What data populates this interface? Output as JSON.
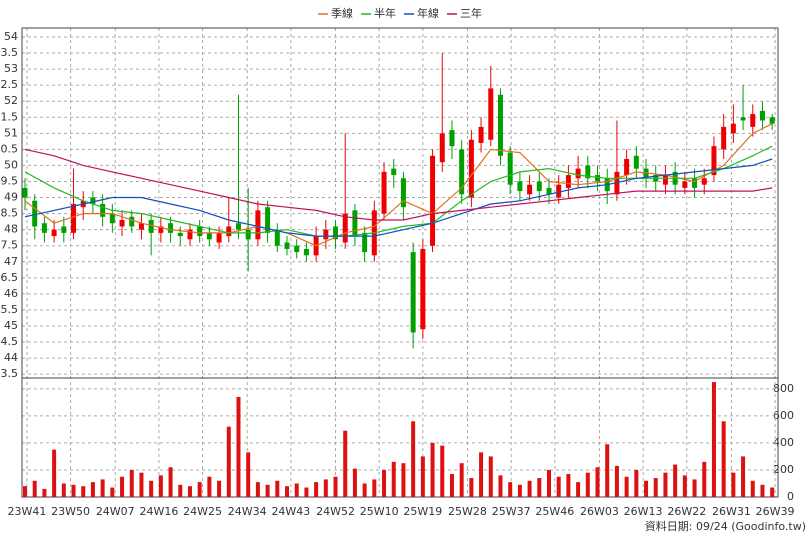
{
  "chart_data": {
    "type": "candlestick",
    "legend": "top",
    "grid": true,
    "up_color": "#ee0000",
    "down_color": "#00a000",
    "xlim": [
      -0.31,
      77.6
    ],
    "xticks": [
      {
        "value": 0.2,
        "label": "23W41"
      },
      {
        "value": 4.7,
        "label": "23W50"
      },
      {
        "value": 9.3,
        "label": "24W07"
      },
      {
        "value": 13.8,
        "label": "24W16"
      },
      {
        "value": 18.3,
        "label": "24W25"
      },
      {
        "value": 22.9,
        "label": "24W34"
      },
      {
        "value": 27.4,
        "label": "24W43"
      },
      {
        "value": 32.0,
        "label": "24W52"
      },
      {
        "value": 36.5,
        "label": "25W10"
      },
      {
        "value": 41.0,
        "label": "25W19"
      },
      {
        "value": 45.6,
        "label": "25W28"
      },
      {
        "value": 50.1,
        "label": "25W37"
      },
      {
        "value": 54.6,
        "label": "25W46"
      },
      {
        "value": 59.2,
        "label": "26W03"
      },
      {
        "value": 63.7,
        "label": "26W13"
      },
      {
        "value": 68.2,
        "label": "26W22"
      },
      {
        "value": 72.8,
        "label": "26W31"
      },
      {
        "value": 77.3,
        "label": "26W39"
      }
    ],
    "ylim": [
      43.38,
      54.28
    ],
    "yticks": [
      54,
      {
        "value": 53.5,
        "label": "3.5"
      },
      53,
      {
        "value": 52.5,
        "label": "2.5"
      },
      52,
      {
        "value": 51.5,
        "label": "1.5"
      },
      51,
      {
        "value": 50.5,
        "label": "0.5"
      },
      50,
      {
        "value": 49.5,
        "label": "9.5"
      },
      49,
      {
        "value": 48.5,
        "label": "8.5"
      },
      48,
      {
        "value": 47.5,
        "label": "7.5"
      },
      47,
      {
        "value": 46.5,
        "label": "6.5"
      },
      46,
      {
        "value": 45.5,
        "label": "5.5"
      },
      45,
      {
        "value": 44.5,
        "label": "4.5"
      },
      44,
      {
        "value": 43.5,
        "label": "3.5"
      }
    ],
    "open": [
      49.3,
      48.9,
      48.2,
      47.8,
      48.1,
      47.9,
      48.7,
      49.0,
      48.8,
      48.5,
      48.1,
      48.4,
      48.0,
      48.3,
      47.9,
      48.2,
      47.9,
      47.7,
      48.1,
      47.9,
      47.6,
      47.8,
      48.2,
      48.0,
      47.7,
      48.7,
      48.0,
      47.6,
      47.5,
      47.4,
      47.2,
      47.7,
      48.1,
      47.6,
      48.6,
      47.9,
      47.2,
      48.5,
      49.9,
      49.6,
      47.3,
      44.9,
      47.5,
      50.1,
      51.1,
      50.5,
      49.0,
      50.7,
      50.8,
      52.2,
      50.4,
      49.5,
      49.1,
      49.5,
      49.3,
      49.0,
      49.3,
      49.6,
      50.0,
      49.7,
      49.6,
      49.1,
      49.7,
      50.3,
      49.9,
      49.7,
      49.4,
      49.8,
      49.3,
      49.6,
      49.4,
      49.7,
      50.5,
      51.0,
      51.5,
      51.2,
      51.7,
      51.5
    ],
    "high": [
      49.6,
      49.1,
      48.4,
      48.3,
      48.4,
      49.9,
      49.2,
      49.2,
      49.1,
      48.8,
      48.6,
      48.6,
      48.5,
      48.5,
      48.4,
      48.4,
      48.1,
      48.2,
      48.3,
      48.1,
      48.1,
      49.0,
      52.2,
      49.3,
      48.9,
      48.9,
      48.2,
      47.8,
      47.7,
      47.6,
      48.1,
      48.3,
      48.3,
      51.0,
      48.8,
      48.1,
      48.9,
      50.1,
      50.2,
      49.8,
      47.6,
      47.7,
      50.5,
      53.5,
      51.4,
      50.8,
      51.1,
      51.5,
      53.1,
      52.4,
      50.6,
      49.8,
      49.7,
      49.8,
      49.6,
      49.7,
      50.0,
      50.3,
      50.3,
      50.0,
      49.9,
      51.4,
      50.5,
      50.6,
      50.2,
      50.0,
      50.0,
      50.1,
      49.8,
      49.9,
      49.9,
      50.9,
      51.6,
      51.9,
      52.5,
      51.9,
      52.0,
      51.6
    ],
    "low": [
      48.6,
      47.7,
      47.6,
      47.6,
      47.6,
      47.7,
      48.3,
      48.5,
      48.1,
      47.9,
      47.8,
      47.9,
      47.7,
      47.2,
      47.6,
      47.6,
      47.5,
      47.5,
      47.6,
      47.5,
      47.4,
      47.6,
      47.7,
      46.7,
      47.5,
      47.6,
      47.3,
      47.2,
      47.1,
      47.0,
      47.0,
      47.4,
      47.4,
      47.4,
      47.5,
      47.0,
      47.0,
      48.3,
      49.3,
      48.3,
      44.3,
      44.6,
      47.3,
      49.8,
      50.2,
      48.8,
      48.7,
      50.4,
      50.6,
      50.0,
      49.1,
      48.9,
      48.9,
      48.9,
      48.8,
      48.8,
      49.0,
      49.3,
      49.3,
      49.2,
      48.8,
      48.9,
      49.4,
      49.6,
      49.3,
      49.2,
      49.1,
      49.1,
      49.1,
      49.0,
      49.1,
      49.5,
      50.2,
      50.7,
      51.1,
      50.9,
      51.1,
      51.1
    ],
    "close": [
      49.0,
      48.1,
      47.9,
      48.0,
      47.9,
      48.8,
      48.9,
      48.8,
      48.4,
      48.2,
      48.3,
      48.1,
      48.2,
      47.9,
      48.1,
      47.9,
      47.8,
      48.0,
      47.8,
      47.7,
      47.9,
      48.1,
      48.0,
      47.7,
      48.6,
      47.9,
      47.5,
      47.4,
      47.3,
      47.2,
      47.8,
      48.0,
      47.7,
      48.5,
      47.8,
      47.3,
      48.6,
      49.8,
      49.7,
      48.7,
      44.8,
      47.4,
      50.3,
      51.0,
      50.6,
      49.1,
      50.8,
      51.2,
      52.4,
      50.3,
      49.4,
      49.2,
      49.4,
      49.2,
      49.1,
      49.4,
      49.7,
      49.9,
      49.6,
      49.5,
      49.2,
      49.8,
      50.2,
      49.9,
      49.6,
      49.5,
      49.7,
      49.4,
      49.5,
      49.3,
      49.6,
      50.6,
      51.2,
      51.3,
      51.4,
      51.6,
      51.4,
      51.3
    ],
    "series": [
      {
        "name": "季線",
        "color": "#e07020",
        "x": [
          0,
          3,
          6,
          9,
          12,
          15,
          18,
          21,
          24,
          27,
          30,
          33,
          36,
          39,
          42,
          45,
          48,
          51,
          54,
          57,
          60,
          63,
          66,
          69,
          72,
          75,
          77
        ],
        "values": [
          48.9,
          48.2,
          48.5,
          48.5,
          48.2,
          48.0,
          47.9,
          47.9,
          48.1,
          47.9,
          47.5,
          47.9,
          48.1,
          48.9,
          48.5,
          49.3,
          50.5,
          50.4,
          49.5,
          49.4,
          49.5,
          49.8,
          49.7,
          49.5,
          50.0,
          51.0,
          51.3
        ]
      },
      {
        "name": "半年",
        "color": "#22bb22",
        "x": [
          0,
          3,
          6,
          9,
          12,
          15,
          18,
          21,
          24,
          27,
          30,
          33,
          36,
          39,
          42,
          45,
          48,
          51,
          54,
          57,
          60,
          63,
          66,
          69,
          72,
          75,
          77
        ],
        "values": [
          49.8,
          49.3,
          48.9,
          48.6,
          48.5,
          48.3,
          48.1,
          47.9,
          47.9,
          48.0,
          47.8,
          47.8,
          47.9,
          48.1,
          48.2,
          48.9,
          49.5,
          49.8,
          49.9,
          49.7,
          49.6,
          49.6,
          49.6,
          49.6,
          49.9,
          50.3,
          50.6
        ]
      },
      {
        "name": "年線",
        "color": "#1050c0",
        "x": [
          0,
          3,
          6,
          9,
          12,
          15,
          18,
          21,
          24,
          27,
          30,
          33,
          36,
          39,
          42,
          45,
          48,
          51,
          54,
          57,
          60,
          63,
          66,
          69,
          72,
          75,
          77
        ],
        "values": [
          48.4,
          48.6,
          48.8,
          49.0,
          49.0,
          48.8,
          48.6,
          48.3,
          48.1,
          47.9,
          47.8,
          47.8,
          47.8,
          48.0,
          48.2,
          48.5,
          48.8,
          48.9,
          49.1,
          49.3,
          49.4,
          49.6,
          49.7,
          49.8,
          49.9,
          50.0,
          50.2
        ]
      },
      {
        "name": "三年",
        "color": "#c0105a",
        "x": [
          0,
          3,
          6,
          9,
          12,
          15,
          18,
          21,
          24,
          27,
          30,
          33,
          36,
          39,
          42,
          45,
          48,
          51,
          54,
          57,
          60,
          63,
          66,
          69,
          72,
          75,
          77
        ],
        "values": [
          50.5,
          50.3,
          50.0,
          49.8,
          49.6,
          49.4,
          49.2,
          49.0,
          48.8,
          48.7,
          48.6,
          48.4,
          48.3,
          48.3,
          48.5,
          48.6,
          48.7,
          48.8,
          48.9,
          49.0,
          49.1,
          49.2,
          49.2,
          49.2,
          49.2,
          49.2,
          49.3
        ]
      }
    ],
    "volume": {
      "color": "#dd1111",
      "ylim": [
        0,
        880
      ],
      "yticks": [
        0,
        200,
        400,
        600,
        800
      ],
      "values": [
        80,
        120,
        60,
        350,
        100,
        90,
        80,
        110,
        130,
        70,
        150,
        200,
        180,
        120,
        160,
        220,
        90,
        80,
        110,
        150,
        120,
        520,
        740,
        330,
        110,
        90,
        120,
        80,
        100,
        70,
        110,
        130,
        150,
        490,
        210,
        100,
        130,
        200,
        260,
        250,
        560,
        300,
        400,
        380,
        170,
        250,
        140,
        330,
        300,
        160,
        110,
        90,
        120,
        140,
        200,
        150,
        170,
        110,
        180,
        220,
        390,
        230,
        150,
        200,
        120,
        140,
        180,
        240,
        160,
        130,
        260,
        850,
        560,
        180,
        300,
        120,
        90,
        70
      ]
    },
    "footer": "資料日期: 09/24  (Goodinfo.tw)"
  }
}
